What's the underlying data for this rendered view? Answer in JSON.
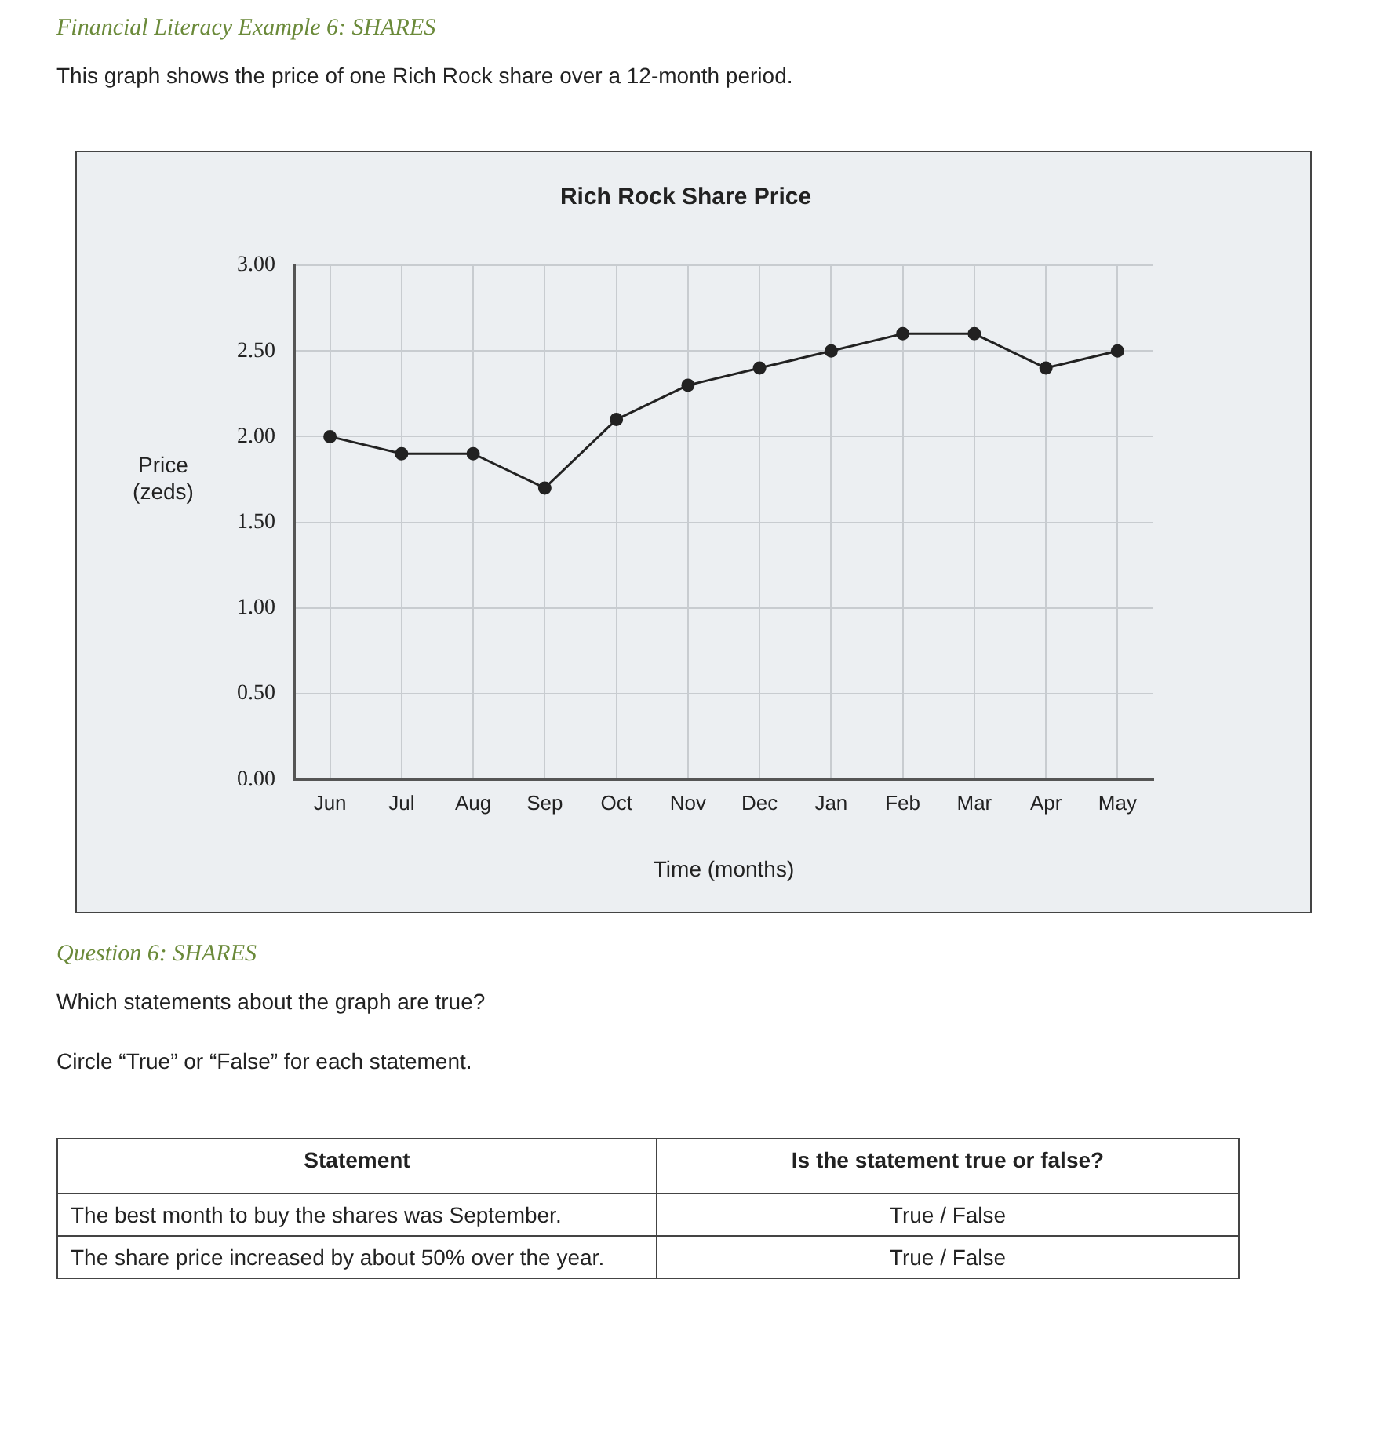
{
  "chart_data": {
    "type": "line",
    "title": "Rich Rock Share Price",
    "xlabel": "Time (months)",
    "ylabel": "Price (zeds)",
    "categories": [
      "Jun",
      "Jul",
      "Aug",
      "Sep",
      "Oct",
      "Nov",
      "Dec",
      "Jan",
      "Feb",
      "Mar",
      "Apr",
      "May"
    ],
    "series": [
      {
        "color": "#222222",
        "values": [
          2.0,
          1.9,
          1.9,
          1.7,
          2.1,
          2.3,
          2.4,
          2.5,
          2.6,
          2.6,
          2.4,
          2.5
        ]
      }
    ],
    "ylim": [
      0,
      3
    ],
    "yticks": [
      {
        "value": 0,
        "label": "0.00"
      },
      {
        "value": 0.5,
        "label": "0.50"
      },
      {
        "value": 1,
        "label": "1.00"
      },
      {
        "value": 1.5,
        "label": "1.50"
      },
      {
        "value": 2,
        "label": "2.00"
      },
      {
        "value": 2.5,
        "label": "2.50"
      },
      {
        "value": 3,
        "label": "3.00"
      }
    ],
    "grid": true,
    "legend": false,
    "marker": "circle",
    "line_style": "solid",
    "annotations": [
      "Financial Literacy Example 6: SHARES",
      "This graph shows the price of one Rich Rock share over a 12-month period.",
      "Question 6: SHARES",
      "Which statements about the graph are true?",
      "Circle “True” or “False” for each statement.",
      "Statement",
      "Is the statement true or false?",
      "The best month to buy the shares was September.",
      "True / False",
      "The share price increased by about 50% over the year.",
      "True / False"
    ]
  }
}
